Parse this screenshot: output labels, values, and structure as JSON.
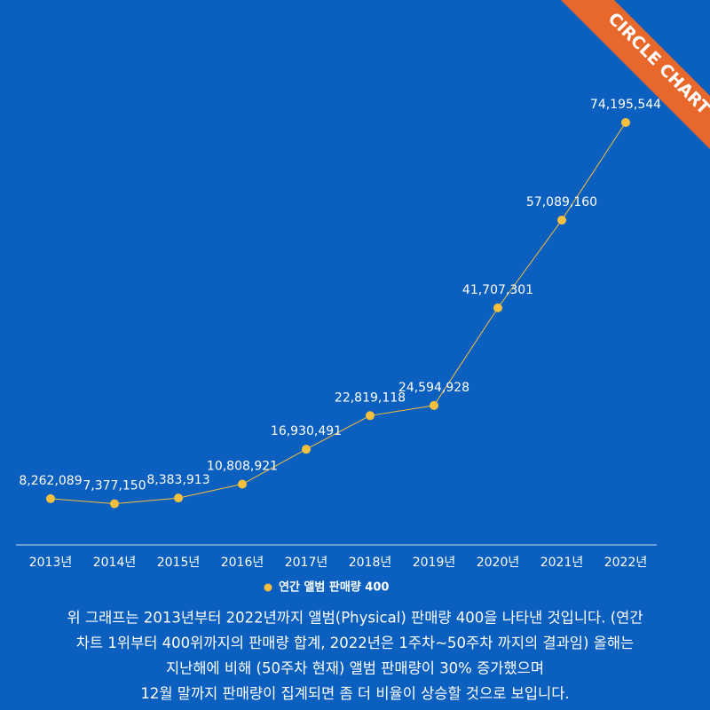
{
  "chart_data": {
    "type": "line",
    "badge": "CIRCLE CHART",
    "categories": [
      "2013년",
      "2014년",
      "2015년",
      "2016년",
      "2017년",
      "2018년",
      "2019년",
      "2020년",
      "2021년",
      "2022년"
    ],
    "series": [
      {
        "name": "연간 앨범 판매량 400",
        "color": "#f5c03e",
        "values": [
          8262089,
          7377150,
          8383913,
          10808921,
          16930491,
          22819118,
          24594928,
          41707301,
          57089160,
          74195544
        ],
        "value_labels": [
          "8,262,089",
          "7,377,150",
          "8,383,913",
          "10,808,921",
          "16,930,491",
          "22,819,118",
          "24,594,928",
          "41,707,301",
          "57,089,160",
          "74,195,544"
        ]
      }
    ],
    "caption_lines": [
      "위 그래프는 2013년부터 2022년까지 앨범(Physical) 판매량 400을 나타낸 것입니다. (연간",
      "차트 1위부터 400위까지의 판매량 합계, 2022년은 1주차~50주차 까지의 결과임) 올해는",
      "지난해에 비해 (50주차 현재) 앨범 판매량이  30% 증가했으며",
      "12월 말까지 판매량이 집계되면 좀 더 비율이 상승할 것으로 보입니다."
    ]
  }
}
